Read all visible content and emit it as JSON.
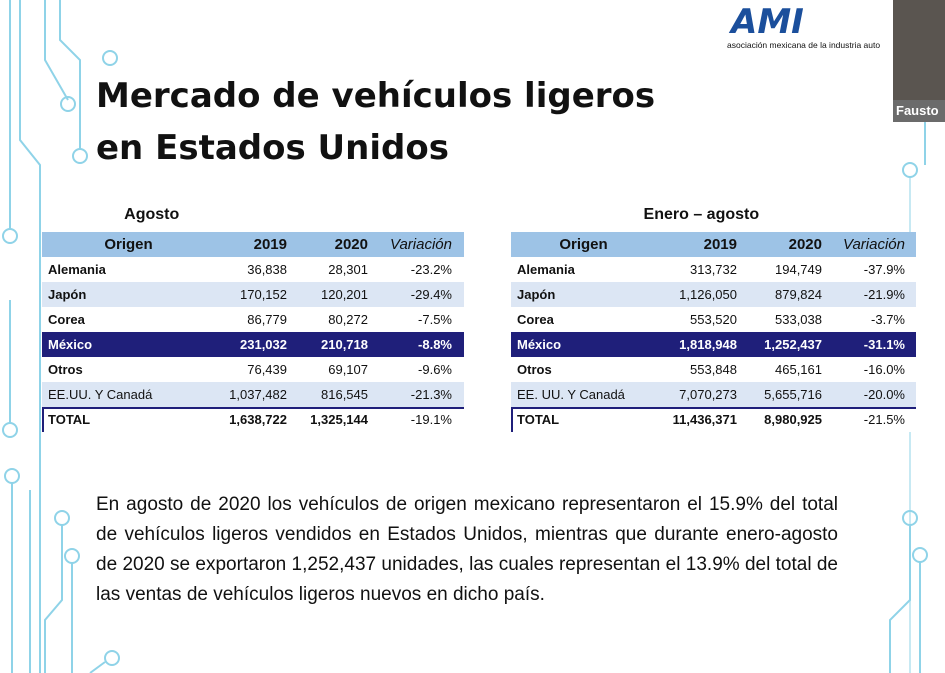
{
  "logo": {
    "mark": "AMI",
    "tagline": "asociación mexicana de la industria auto"
  },
  "video": {
    "name": "Fausto"
  },
  "title": [
    "Mercado de vehículos ligeros",
    "en Estados Unidos"
  ],
  "tables": [
    {
      "caption": "Agosto",
      "header": [
        "Origen",
        "2019",
        "2020",
        "Variación"
      ],
      "rows": [
        [
          "Alemania",
          "36,838",
          "28,301",
          "-23.2%"
        ],
        [
          "Japón",
          "170,152",
          "120,201",
          "-29.4%"
        ],
        [
          "Corea",
          "86,779",
          "80,272",
          "-7.5%"
        ],
        [
          "México",
          "231,032",
          "210,718",
          "-8.8%"
        ],
        [
          "Otros",
          "76,439",
          "69,107",
          "-9.6%"
        ],
        [
          "EE.UU. Y Canadá",
          "1,037,482",
          "816,545",
          "-21.3%"
        ],
        [
          "TOTAL",
          "1,638,722",
          "1,325,144",
          "-19.1%"
        ]
      ]
    },
    {
      "caption": "Enero – agosto",
      "header": [
        "Origen",
        "2019",
        "2020",
        "Variación"
      ],
      "rows": [
        [
          "Alemania",
          "313,732",
          "194,749",
          "-37.9%"
        ],
        [
          "Japón",
          "1,126,050",
          "879,824",
          "-21.9%"
        ],
        [
          "Corea",
          "553,520",
          "533,038",
          "-3.7%"
        ],
        [
          "México",
          "1,818,948",
          "1,252,437",
          "-31.1%"
        ],
        [
          "Otros",
          "553,848",
          "465,161",
          "-16.0%"
        ],
        [
          "EE. UU. Y Canadá",
          "7,070,273",
          "5,655,716",
          "-20.0%"
        ],
        [
          "TOTAL",
          "11,436,371",
          "8,980,925",
          "-21.5%"
        ]
      ]
    }
  ],
  "paragraph": "En agosto de 2020 los vehículos de origen mexicano representaron el 15.9% del total de vehículos ligeros vendidos en Estados Unidos, mientras que durante enero-agosto de 2020 se exportaron 1,252,437 unidades, las cuales representan el 13.9% del total de las ventas de vehículos ligeros nuevos en dicho país."
}
